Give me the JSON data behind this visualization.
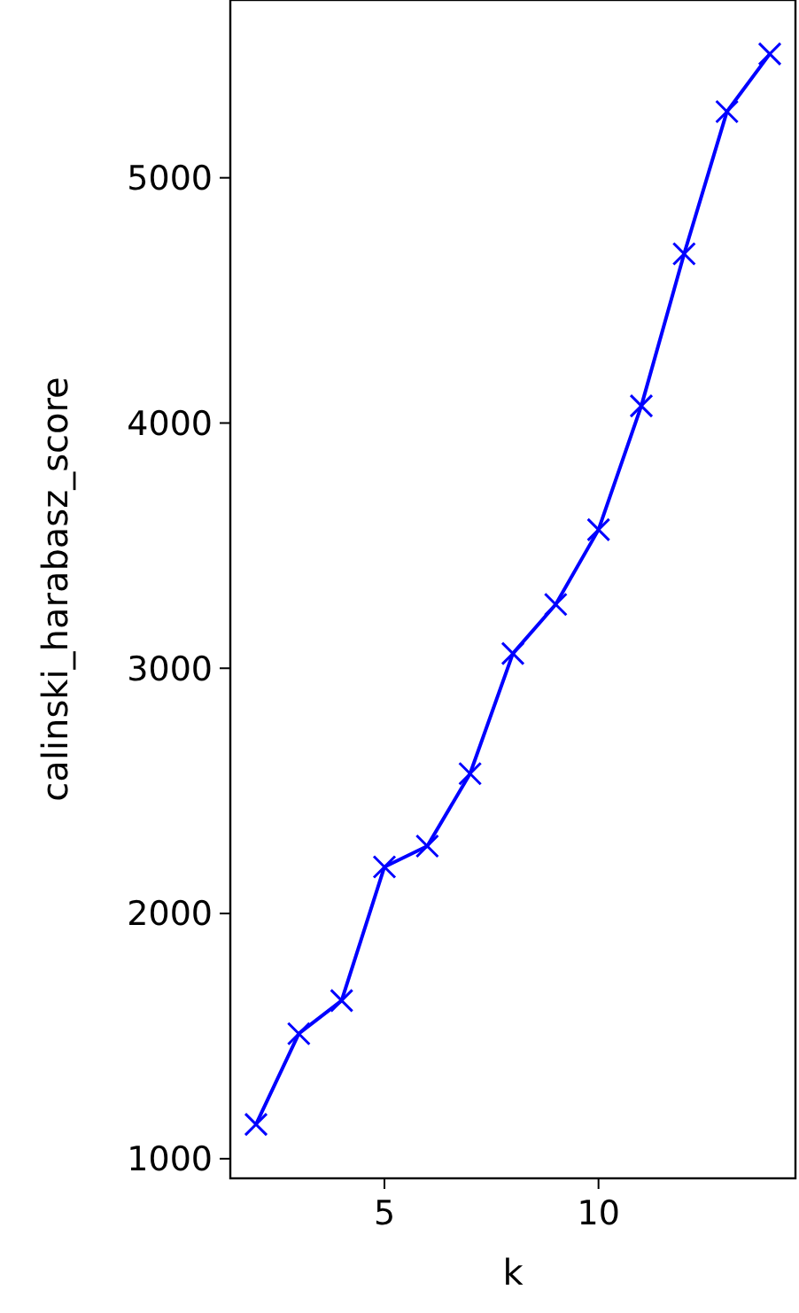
{
  "chart_data": {
    "type": "line",
    "xlabel": "k",
    "ylabel": "calinski_harabasz_score",
    "x": [
      2,
      3,
      4,
      5,
      6,
      7,
      8,
      9,
      10,
      11,
      12,
      13,
      14
    ],
    "series": [
      {
        "color": "#0000ff",
        "values": [
          1140,
          1510,
          1645,
          2190,
          2275,
          2570,
          3060,
          3260,
          3565,
          4070,
          4690,
          5270,
          5505
        ]
      }
    ],
    "xlim": [
      1.4,
      14.6
    ],
    "ylim": [
      920,
      5725
    ],
    "xticks": [
      5,
      10
    ],
    "yticks": [
      1000,
      2000,
      3000,
      4000,
      5000
    ],
    "marker": "cross",
    "line_style": "solid"
  }
}
